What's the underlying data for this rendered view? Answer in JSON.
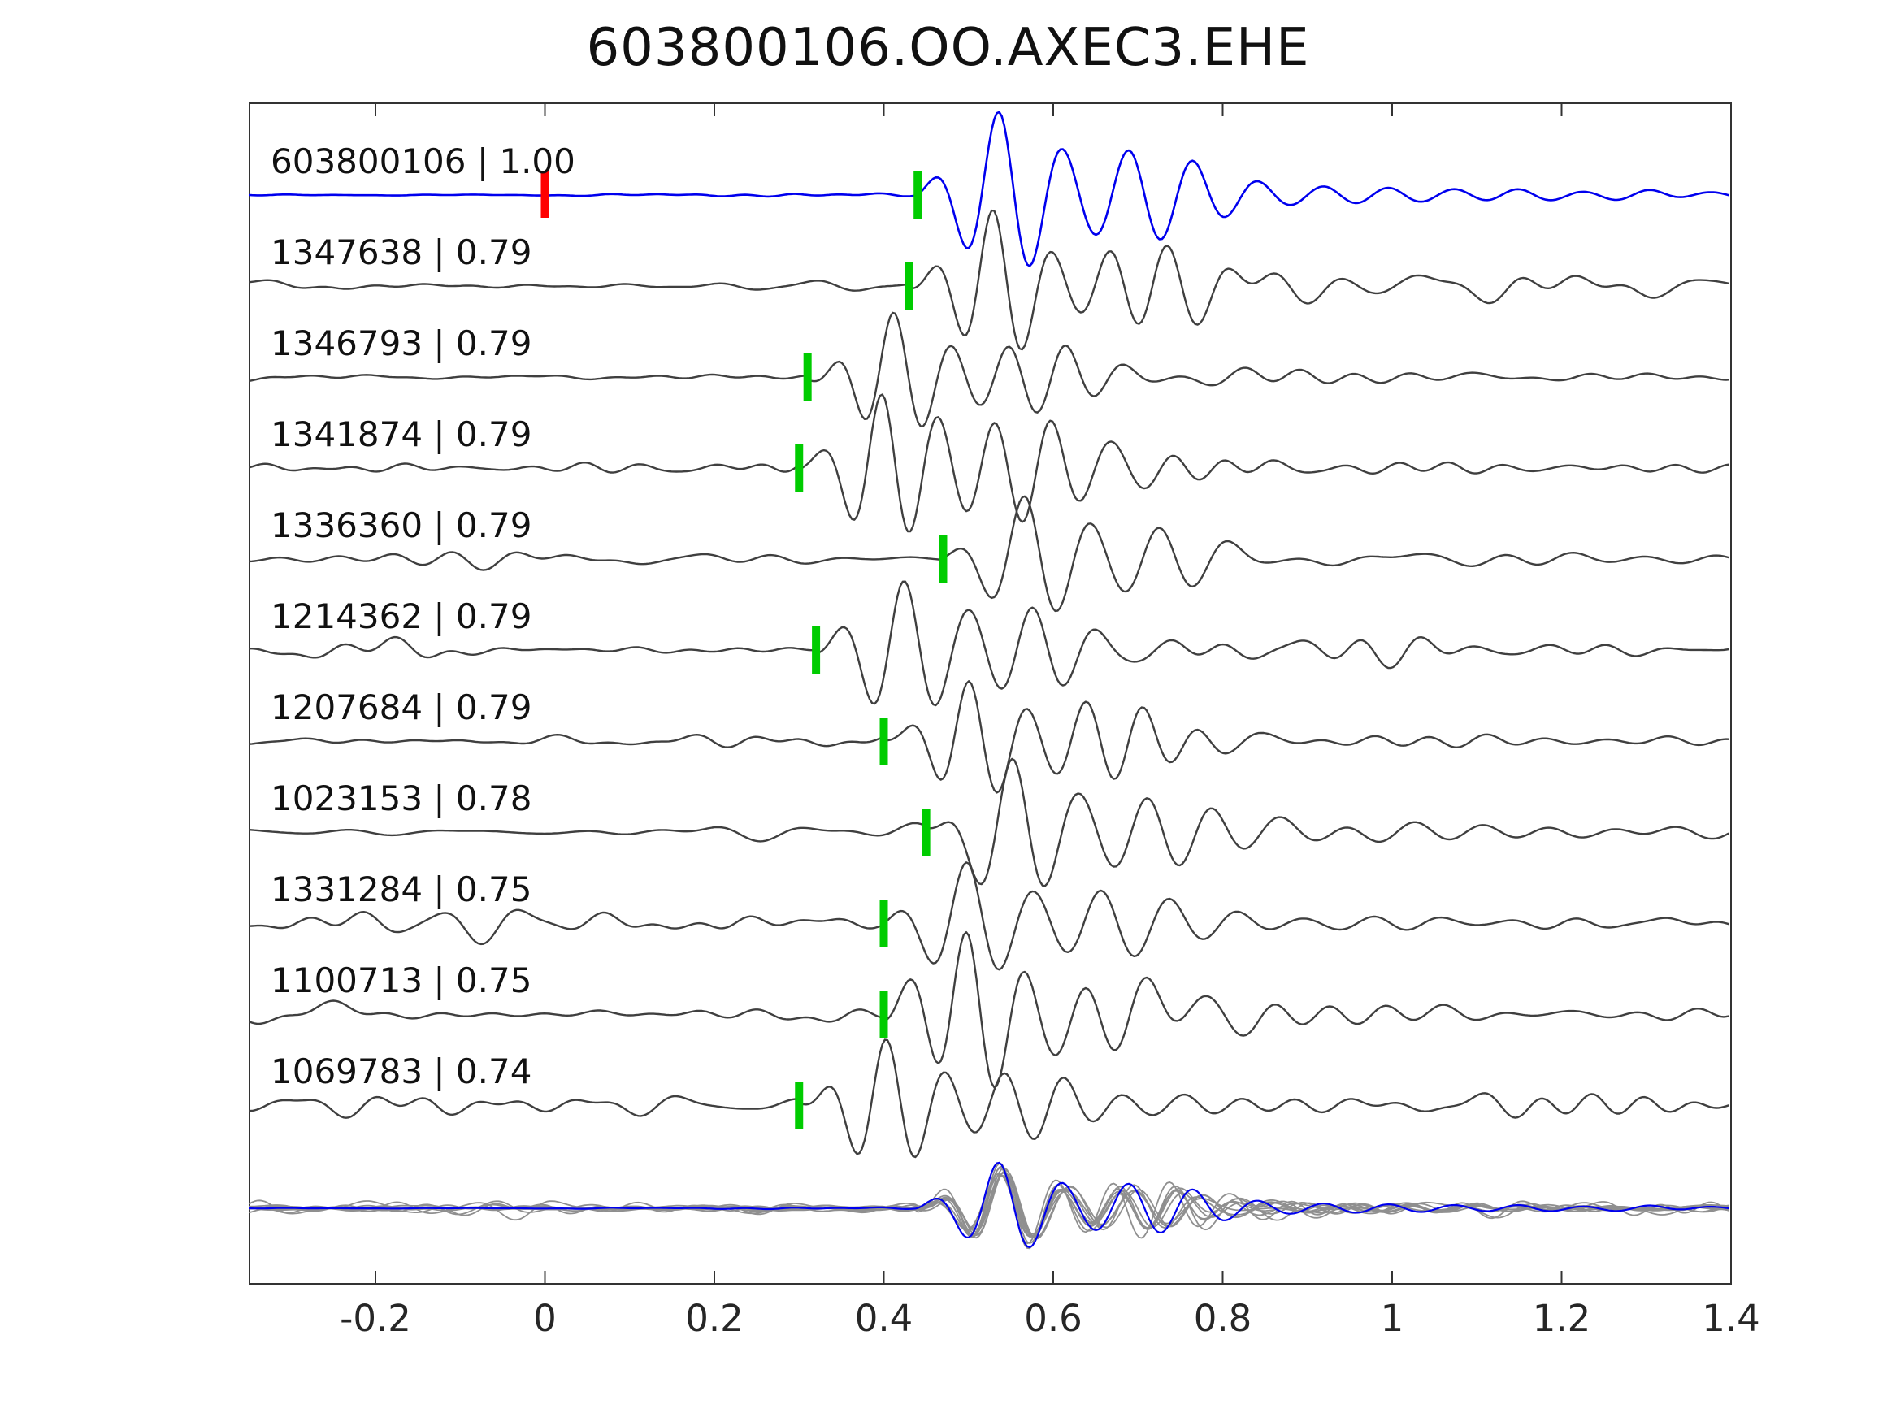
{
  "title": "603800106.OO.AXEC3.EHE",
  "chart_data": {
    "type": "line",
    "title": "603800106.OO.AXEC3.EHE",
    "xlabel": "",
    "ylabel": "",
    "xlim": [
      -0.35,
      1.4
    ],
    "grid": false,
    "legend": "none",
    "x_ticks": [
      -0.2,
      0,
      0.2,
      0.4,
      0.6,
      0.8,
      1,
      1.2,
      1.4
    ],
    "x_tick_labels": [
      "-0.2",
      "0",
      "0.2",
      "0.4",
      "0.6",
      "0.8",
      "1",
      "1.2",
      "1.4"
    ],
    "colors": {
      "template": "#0000ee",
      "trace": "#3f3f3f",
      "overlay": "#8f8f8f",
      "pick_marker": "#00cc00",
      "origin_marker": "#ff0000",
      "axis": "#333333",
      "background": "#ffffff"
    },
    "traces": [
      {
        "id": "603800106",
        "cc": "1.00",
        "label": "603800106 | 1.00",
        "pick": 0.44,
        "origin_marker": 0.0,
        "is_template": true
      },
      {
        "id": "1347638",
        "cc": "0.79",
        "label": "1347638 | 0.79",
        "pick": 0.43
      },
      {
        "id": "1346793",
        "cc": "0.79",
        "label": "1346793 | 0.79",
        "pick": 0.31
      },
      {
        "id": "1341874",
        "cc": "0.79",
        "label": "1341874 | 0.79",
        "pick": 0.3
      },
      {
        "id": "1336360",
        "cc": "0.79",
        "label": "1336360 | 0.79",
        "pick": 0.47
      },
      {
        "id": "1214362",
        "cc": "0.79",
        "label": "1214362 | 0.79",
        "pick": 0.32
      },
      {
        "id": "1207684",
        "cc": "0.79",
        "label": "1207684 | 0.79",
        "pick": 0.4
      },
      {
        "id": "1023153",
        "cc": "0.78",
        "label": "1023153 | 0.78",
        "pick": 0.45
      },
      {
        "id": "1331284",
        "cc": "0.75",
        "label": "1331284 | 0.75",
        "pick": 0.4
      },
      {
        "id": "1100713",
        "cc": "0.75",
        "label": "1100713 | 0.75",
        "pick": 0.4
      },
      {
        "id": "1069783",
        "cc": "0.74",
        "label": "1069783 | 0.74",
        "pick": 0.3
      }
    ],
    "overlay": {
      "aligned_to_pick": 0.44,
      "n_gray_traces": 10,
      "has_blue_template": true
    }
  }
}
